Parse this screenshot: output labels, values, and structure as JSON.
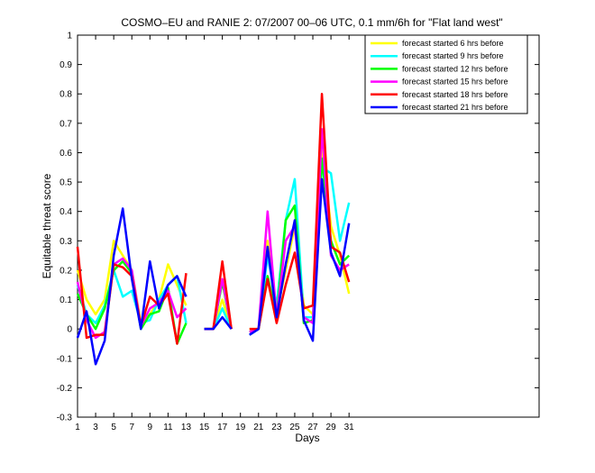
{
  "chart_data": {
    "type": "line",
    "title": "COSMO–EU and RANIE 2: 07/2007 00–06 UTC, 0.1 mm/6h for \"Flat land west\"",
    "xlabel": "Days",
    "ylabel": "Equitable threat score",
    "xlim": [
      1,
      52
    ],
    "ylim": [
      -0.3,
      1
    ],
    "xticks": [
      1,
      3,
      5,
      7,
      9,
      11,
      13,
      15,
      17,
      19,
      21,
      23,
      25,
      27,
      29,
      31
    ],
    "yticks": [
      -0.3,
      -0.2,
      -0.1,
      0,
      0.1,
      0.2,
      0.3,
      0.4,
      0.5,
      0.6,
      0.7,
      0.8,
      0.9,
      1
    ],
    "yticklabels": [
      "-0.3",
      "-0.2",
      "-0.1",
      "0",
      "0.1",
      "0.2",
      "0.3",
      "0.4",
      "0.5",
      "0.6",
      "0.7",
      "0.8",
      "0.9",
      "1"
    ],
    "grid": false,
    "legend_position": "top-right",
    "x": [
      1,
      2,
      3,
      4,
      5,
      6,
      7,
      8,
      9,
      10,
      11,
      12,
      13,
      14,
      15,
      16,
      17,
      18,
      19,
      20,
      21,
      22,
      23,
      24,
      25,
      26,
      27,
      28,
      29,
      30,
      31
    ],
    "series": [
      {
        "name": "forecast started 6 hrs before",
        "color": "#ffff00",
        "values": [
          0.2,
          0.1,
          0.05,
          0.1,
          0.3,
          0.25,
          0.2,
          0.02,
          0.05,
          0.1,
          0.22,
          0.15,
          0.08,
          null,
          0,
          0,
          0.1,
          0,
          null,
          0,
          0,
          0.3,
          0.05,
          0.2,
          0.35,
          0.08,
          0.05,
          0.62,
          0.35,
          0.25,
          0.12
        ]
      },
      {
        "name": "forecast started 9 hrs before",
        "color": "#00ffff",
        "values": [
          0.15,
          0.05,
          0.02,
          0.08,
          0.2,
          0.11,
          0.13,
          0.02,
          0.03,
          0.1,
          0.15,
          0.18,
          0.02,
          null,
          0,
          0,
          0.07,
          0,
          null,
          -0.02,
          0,
          0.25,
          0.08,
          0.37,
          0.51,
          0.04,
          0.04,
          0.55,
          0.53,
          0.3,
          0.43
        ]
      },
      {
        "name": "forecast started 12 hrs before",
        "color": "#00ff00",
        "values": [
          0.12,
          0.05,
          0,
          0.07,
          0.2,
          0.23,
          0.19,
          0,
          0.05,
          0.06,
          0.14,
          -0.05,
          0.02,
          null,
          0,
          0,
          0.16,
          0,
          null,
          -0.01,
          0,
          0.18,
          0.04,
          0.37,
          0.42,
          0.02,
          0.03,
          0.58,
          0.3,
          0.22,
          0.25
        ]
      },
      {
        "name": "forecast started 15 hrs before",
        "color": "#ff00ff",
        "values": [
          0.16,
          0.03,
          -0.03,
          -0.01,
          0.22,
          0.24,
          0.2,
          0.01,
          0.07,
          0.09,
          0.13,
          0.04,
          0.07,
          null,
          0,
          0,
          0.17,
          0,
          null,
          -0.01,
          0,
          0.4,
          0.04,
          0.3,
          0.35,
          0.04,
          0.02,
          0.68,
          0.25,
          0.2,
          0.22
        ]
      },
      {
        "name": "forecast started 18 hrs before",
        "color": "#ff0000",
        "values": [
          0.28,
          -0.03,
          -0.02,
          -0.02,
          0.22,
          0.21,
          0.18,
          0.01,
          0.11,
          0.08,
          0.12,
          -0.05,
          0.19,
          null,
          0,
          0,
          0.23,
          0,
          null,
          0,
          0,
          0.17,
          0.02,
          0.15,
          0.26,
          0.07,
          0.08,
          0.8,
          0.28,
          0.26,
          0.16
        ]
      },
      {
        "name": "forecast started 21 hrs before",
        "color": "#0000ff",
        "values": [
          -0.03,
          0.06,
          -0.12,
          -0.04,
          0.25,
          0.41,
          0.17,
          0,
          0.23,
          0.07,
          0.15,
          0.18,
          0.11,
          null,
          0,
          0,
          0.04,
          0,
          null,
          -0.02,
          0,
          0.28,
          0.04,
          0.22,
          0.37,
          0.03,
          -0.04,
          0.51,
          0.26,
          0.18,
          0.36
        ]
      }
    ]
  }
}
